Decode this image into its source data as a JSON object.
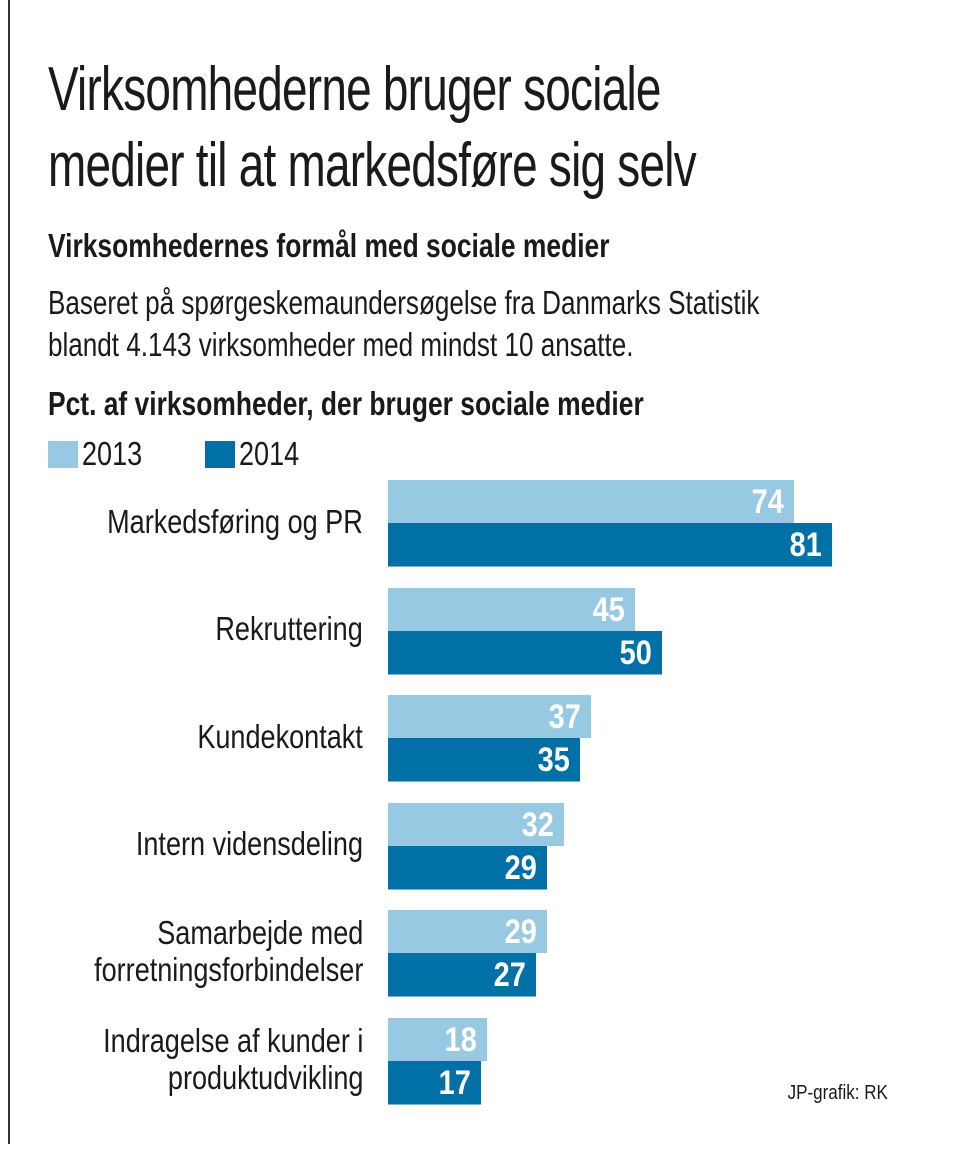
{
  "title": "Virksomhederne bruger sociale medier til at markedsføre sig selv",
  "title_lines": [
    "Virksomhederne bruger sociale",
    "medier til at markedsføre sig selv"
  ],
  "subtitle": "Virksomhedernes formål med sociale medier",
  "description_lines": [
    "Baseret på spørgeskemaundersøgelse fra Danmarks Statistik",
    "blandt 4.143 virksomheder med mindst 10 ansatte."
  ],
  "credit": "JP-grafik: RK",
  "chart_data": {
    "type": "bar",
    "orientation": "horizontal",
    "title": "Pct. af virksomheder, der bruger sociale medier",
    "xlabel": "",
    "ylabel": "Pct. af virksomheder, der bruger sociale medier",
    "categories": [
      [
        "Markedsføring og PR"
      ],
      [
        "Rekruttering"
      ],
      [
        "Kundekontakt"
      ],
      [
        "Intern vidensdeling"
      ],
      [
        "Samarbejde med",
        "forretningsforbindelser"
      ],
      [
        "Indragelse af kunder i",
        "produktudvikling"
      ]
    ],
    "series": [
      {
        "name": "2013",
        "color": "#97c9e3",
        "values": [
          74,
          45,
          37,
          32,
          29,
          18
        ]
      },
      {
        "name": "2014",
        "color": "#0070a6",
        "values": [
          81,
          50,
          35,
          29,
          27,
          17
        ]
      }
    ],
    "xlim": [
      0,
      100
    ],
    "grid": false,
    "legend_position": "top-left",
    "data_labels": true
  }
}
